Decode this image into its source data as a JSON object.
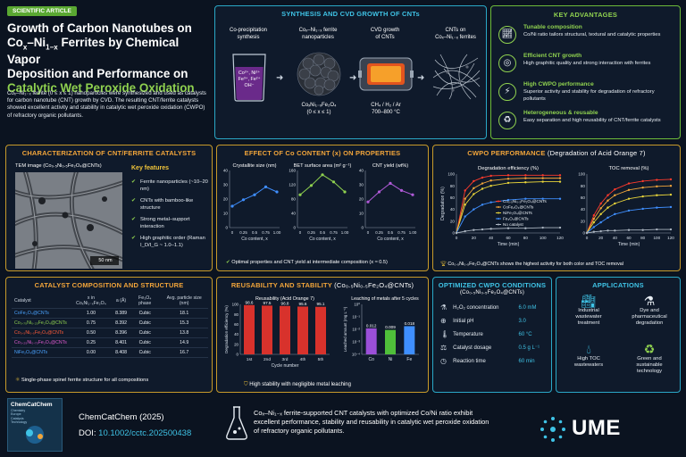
{
  "header": {
    "badge": "SCIENTIFIC ARTICLE",
    "title_l1": "Growth of Carbon Nanotubes on",
    "title_l2": "Co",
    "title_l2_sub1": "x",
    "title_l2_mid": "–Ni",
    "title_l2_sub2": "1−x",
    "title_l2_end": " Ferrites by Chemical Vapor",
    "title_l3": "Deposition and Performance on",
    "title_l4": "Catalytic Wet Peroxide Oxidation",
    "abstract": "Coₓ–Ni₁₋ₓ ferrite (0 ≤ x ≤ 1) nanoparticles were synthesized and used as catalysts for carbon nanotube (CNT) growth by CVD. The resulting CNT/ferrite catalysts showed excellent activity and stability in catalytic wet peroxide oxidation (CWPO) of refractory organic pollutants."
  },
  "synthesis": {
    "title": "SYNTHESIS AND CVD GROWTH OF CNTs",
    "step1_l1": "Co-precipitation",
    "step1_l2": "synthesis",
    "beaker_l1": "Co²⁺, Ni²⁺",
    "beaker_l2": "Fe³⁺, Fe²⁺",
    "beaker_l3": "OH⁻",
    "step2_l1": "Coₓ–Ni₁₋ₓ ferrite",
    "step2_l2": "nanoparticles",
    "step2_f1": "CoₓNi₁₋ₓFe₂O₄",
    "step2_f2": "(0 ≤ x ≤ 1)",
    "step3_l1": "CVD growth",
    "step3_l2": "of CNTs",
    "step3_f1": "CH₄ / H₂ / Ar",
    "step3_f2": "700–800 °C",
    "step4_l1": "CNTs on",
    "step4_l2": "Coₓ–Ni₁₋ₓ ferrites"
  },
  "advantages": {
    "title": "KEY ADVANTAGES",
    "items": [
      {
        "icon": "chart-up-icon",
        "head": "Tunable composition",
        "text": "Co/Ni ratio tailors structural, textural and catalytic properties"
      },
      {
        "icon": "target-icon",
        "head": "Efficient CNT growth",
        "text": "High graphitic quality and strong interaction with ferrites"
      },
      {
        "icon": "lightning-icon",
        "head": "High CWPO performance",
        "text": "Superior activity and stability for degradation of refractory pollutants"
      },
      {
        "icon": "recycle-icon",
        "head": "Heterogeneous & reusable",
        "text": "Easy separation and high reusability of CNT/ferrite catalysts"
      }
    ]
  },
  "characterization": {
    "title": "CHARACTERIZATION OF CNT/FERRITE CATALYSTS",
    "tem_label": "TEM image (Co₀.₅Ni₀.₅Fe₂O₄@CNTs)",
    "scale": "50 nm",
    "features_title": "Key features",
    "features": [
      "Ferrite nanoparticles (~10–20 nm)",
      "CNTs with bamboo-like structure",
      "Strong metal–support interaction",
      "High graphitic order (Raman I_D/I_G ~ 1.0–1.1)"
    ]
  },
  "effect": {
    "title": "EFFECT OF Co CONTENT (x) ON PROPERTIES",
    "footer": "Optimal properties and CNT yield at intermediate composition (x ≈ 0.5)"
  },
  "cwpo": {
    "title": "CWPO PERFORMANCE",
    "title_sub": "(Degradation of Acid Orange 7)",
    "footer": "Co₀.₅Ni₀.₅Fe₂O₄@CNTs shows the highest activity for both color and TOC removal",
    "legend": [
      "Co₀.₅Ni₀.₅Fe₂O₄@CNTs",
      "CoFe₂O₄@CNTs",
      "NiFe₂O₄@CNTs",
      "Fe₃O₄@CNTs",
      "No catalyst"
    ]
  },
  "catalyst_table": {
    "title": "CATALYST COMPOSITION AND STRUCTURE",
    "headers": [
      "Catalyst",
      "x in CoₓNi₁₋ₓFe₂O₄",
      "a (Å)",
      "Fe₃O₄ phase",
      "Avg. particle size (nm)"
    ],
    "rows": [
      {
        "name": "CoFe₂O₄@CNTs",
        "color": "#4aa3ff",
        "x": "1.00",
        "a": "8.389",
        "phase": "Cubic",
        "size": "18.1"
      },
      {
        "name": "Co₀.₇₅Ni₀.₂₅Fe₂O₄@CNTs",
        "color": "#8fd14f",
        "x": "0.75",
        "a": "8.392",
        "phase": "Cubic",
        "size": "15.3"
      },
      {
        "name": "Co₀.₅Ni₀.₅Fe₂O₄@CNTs",
        "color": "#ff5b3a",
        "x": "0.50",
        "a": "8.396",
        "phase": "Cubic",
        "size": "13.8"
      },
      {
        "name": "Co₀.₂₅Ni₀.₇₅Fe₂O₄@CNTs",
        "color": "#e05ad0",
        "x": "0.25",
        "a": "8.401",
        "phase": "Cubic",
        "size": "14.9"
      },
      {
        "name": "NiFe₂O₄@CNTs",
        "color": "#4aa3ff",
        "x": "0.00",
        "a": "8.408",
        "phase": "Cubic",
        "size": "16.7"
      }
    ],
    "footer": "Single-phase spinel ferrite structure for all compositions"
  },
  "reusability": {
    "title": "REUSABILITY AND STABILITY",
    "title_sub": "(Co₀.₅Ni₀.₅Fe₂O₄@CNTs)",
    "footer": "High stability with negligible metal leaching"
  },
  "conditions": {
    "title": "OPTIMIZED CWPO CONDITIONS",
    "subtitle": "(Co₀.₅Ni₀.₅Fe₂O₄@CNTs)",
    "rows": [
      {
        "icon": "flask-icon",
        "label": "H₂O₂ concentration",
        "value": "6.0 mM"
      },
      {
        "icon": "ph-icon",
        "label": "Initial pH",
        "value": "3.0"
      },
      {
        "icon": "thermometer-icon",
        "label": "Temperature",
        "value": "60 °C"
      },
      {
        "icon": "dosage-icon",
        "label": "Catalyst dosage",
        "value": "0.5 g L⁻¹"
      },
      {
        "icon": "clock-icon",
        "label": "Reaction time",
        "value": "60 min"
      }
    ]
  },
  "applications": {
    "title": "APPLICATIONS",
    "items": [
      {
        "icon": "factory-icon",
        "l1": "Industrial",
        "l2": "wastewater",
        "l3": "treatment"
      },
      {
        "icon": "dye-flask-icon",
        "l1": "Dye and",
        "l2": "pharmaceutical",
        "l3": "degradation"
      },
      {
        "icon": "water-drop-icon",
        "l1": "High TOC",
        "l2": "wastewaters",
        "l3": ""
      },
      {
        "icon": "recycle-icon",
        "l1": "Green and",
        "l2": "sustainable",
        "l3": "technology"
      }
    ]
  },
  "footer": {
    "journal_cover_l1": "ChemCatChem",
    "journal_cover_l2": "Chemistry",
    "journal_cover_l3": "Europe",
    "journal_cover_l4": "Catalysis",
    "journal_cover_l5": "Technology",
    "journal": "ChemCatChem (2025)",
    "doi_label": "DOI: ",
    "doi": "10.1002/cctc.202500438",
    "summary": "Coₓ–Ni₁₋ₓ ferrite-supported CNT catalysts with optimized Co/Ni ratio exhibit excellent performance, stability and reusability in catalytic wet peroxide oxidation of refractory organic pollutants.",
    "brand": "UME"
  },
  "colors": {
    "accent_orange": "#f2a53a",
    "accent_cyan": "#3fc3e6",
    "accent_green": "#8fd14f",
    "bar_red": "#d8322c",
    "bg": "#0b1320"
  },
  "chart_data": [
    {
      "type": "line",
      "title": "Crystallite size (nm)",
      "xlabel": "Co content, x",
      "x": [
        0,
        0.25,
        0.5,
        0.75,
        1.0
      ],
      "values": [
        15,
        19.5,
        23,
        28.5,
        25
      ],
      "ylim": [
        0,
        40
      ],
      "yticks": [
        0,
        10,
        20,
        30,
        40
      ],
      "xticks": [
        "0",
        "0.25",
        "0.5",
        "0.75",
        "1.00"
      ],
      "color": "#3f8fff"
    },
    {
      "type": "line",
      "title": "BET surface area (m² g⁻¹)",
      "xlabel": "Co content, x",
      "x": [
        0,
        0.25,
        0.5,
        0.75,
        1.0
      ],
      "values": [
        92,
        118,
        148,
        128,
        100
      ],
      "ylim": [
        0,
        160
      ],
      "yticks": [
        0,
        40,
        80,
        120,
        160
      ],
      "xticks": [
        "0",
        "0.25",
        "0.5",
        "0.75",
        "1.00"
      ],
      "color": "#8fd14f"
    },
    {
      "type": "line",
      "title": "CNT yield (wt%)",
      "xlabel": "Co content, x",
      "x": [
        0,
        0.25,
        0.5,
        0.75,
        1.0
      ],
      "values": [
        18,
        25,
        31,
        26,
        23
      ],
      "ylim": [
        0,
        40
      ],
      "yticks": [
        0,
        10,
        20,
        30,
        40
      ],
      "xticks": [
        "0",
        "0.25",
        "0.5",
        "0.75",
        "1.00"
      ],
      "color": "#b05ad8"
    },
    {
      "type": "line",
      "title": "Degradation efficiency (%)",
      "xlabel": "Time (min)",
      "ylabel": "Degradation (%)",
      "x": [
        0,
        10,
        20,
        30,
        40,
        60,
        80,
        100,
        120
      ],
      "xticks": [
        0,
        20,
        40,
        60,
        80,
        100,
        120
      ],
      "ylim": [
        0,
        100
      ],
      "yticks": [
        0,
        20,
        40,
        60,
        80,
        100
      ],
      "series": [
        {
          "name": "Co₀.₅Ni₀.₅Fe₂O₄@CNTs",
          "color": "#ff3a2c",
          "values": [
            0,
            72,
            88,
            94,
            97,
            98,
            98,
            98,
            98
          ]
        },
        {
          "name": "CoFe₂O₄@CNTs",
          "color": "#f2a53a",
          "values": [
            0,
            58,
            76,
            84,
            89,
            92,
            93,
            93,
            93
          ]
        },
        {
          "name": "NiFe₂O₄@CNTs",
          "color": "#e8d43a",
          "values": [
            0,
            48,
            66,
            75,
            80,
            85,
            86,
            87,
            87
          ]
        },
        {
          "name": "Fe₃O₄@CNTs",
          "color": "#3f8fff",
          "values": [
            0,
            28,
            40,
            48,
            52,
            56,
            58,
            58,
            58
          ]
        },
        {
          "name": "No catalyst",
          "color": "#aab4c0",
          "values": [
            0,
            3,
            5,
            6,
            7,
            8,
            8,
            9,
            9
          ]
        }
      ]
    },
    {
      "type": "line",
      "title": "TOC removal (%)",
      "xlabel": "Time (min)",
      "x": [
        0,
        10,
        20,
        30,
        40,
        60,
        80,
        100,
        120
      ],
      "xticks": [
        0,
        20,
        40,
        60,
        80,
        100,
        120
      ],
      "ylim": [
        0,
        100
      ],
      "yticks": [
        0,
        20,
        40,
        60,
        80,
        100
      ],
      "series": [
        {
          "name": "Co₀.₅Ni₀.₅Fe₂O₄@CNTs",
          "color": "#ff3a2c",
          "values": [
            0,
            30,
            50,
            64,
            74,
            84,
            88,
            90,
            91
          ]
        },
        {
          "name": "CoFe₂O₄@CNTs",
          "color": "#f2a53a",
          "values": [
            0,
            24,
            42,
            55,
            64,
            73,
            77,
            79,
            80
          ]
        },
        {
          "name": "NiFe₂O₄@CNTs",
          "color": "#e8d43a",
          "values": [
            0,
            18,
            32,
            43,
            50,
            58,
            62,
            64,
            65
          ]
        },
        {
          "name": "Fe₃O₄@CNTs",
          "color": "#3f8fff",
          "values": [
            0,
            10,
            18,
            26,
            32,
            38,
            41,
            43,
            44
          ]
        },
        {
          "name": "No catalyst",
          "color": "#aab4c0",
          "values": [
            0,
            2,
            3,
            4,
            4,
            5,
            5,
            6,
            6
          ]
        }
      ]
    },
    {
      "type": "bar",
      "title": "Reusability (Acid Orange 7)",
      "xlabel": "Cycle number",
      "ylabel": "Degradation efficiency (%)",
      "categories": [
        "1st",
        "2nd",
        "3rd",
        "4th",
        "5th"
      ],
      "values": [
        98.6,
        97.5,
        96.8,
        95.6,
        95.1
      ],
      "ylim": [
        0,
        100
      ],
      "yticks": [
        0,
        20,
        40,
        60,
        80,
        100
      ],
      "color": "#d8322c"
    },
    {
      "type": "bar",
      "title": "Leaching of metals after 5 cycles",
      "ylabel": "Leached amount (mg L⁻¹)",
      "log_scale": true,
      "categories": [
        "Co",
        "Ni",
        "Fe"
      ],
      "values": [
        0.012,
        0.009,
        0.018
      ],
      "value_labels": [
        "0.012",
        "0.009",
        "0.018"
      ],
      "ylim": [
        0.0001,
        1
      ],
      "yticks": [
        "10⁻⁴",
        "10⁻³",
        "10⁻²",
        "10⁻¹",
        "10⁰"
      ],
      "colors": [
        "#9b4fd8",
        "#4fbf3a",
        "#3f8fff"
      ]
    }
  ]
}
